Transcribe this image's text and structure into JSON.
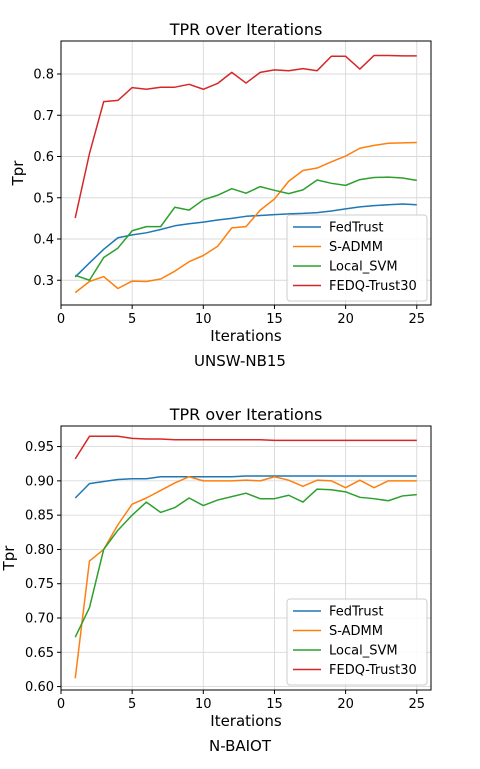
{
  "chart_data": [
    {
      "type": "line",
      "title": "TPR over Iterations",
      "xlabel": "Iterations",
      "ylabel": "Tpr",
      "caption": "UNSW-NB15",
      "xlim": [
        0,
        26
      ],
      "ylim": [
        0.24,
        0.88
      ],
      "xticks": [
        0,
        5,
        10,
        15,
        20,
        25
      ],
      "yticks": [
        0.3,
        0.4,
        0.5,
        0.6,
        0.7,
        0.8
      ],
      "ytick_decimals": 1,
      "grid": true,
      "legend_position": "lower-right",
      "x": [
        1,
        2,
        3,
        4,
        5,
        6,
        7,
        8,
        9,
        10,
        11,
        12,
        13,
        14,
        15,
        16,
        17,
        18,
        19,
        20,
        21,
        22,
        23,
        24,
        25
      ],
      "series": [
        {
          "name": "FedTrust",
          "color": "#1f77b4",
          "values": [
            0.308,
            0.342,
            0.375,
            0.403,
            0.41,
            0.415,
            0.423,
            0.432,
            0.437,
            0.441,
            0.446,
            0.45,
            0.455,
            0.457,
            0.459,
            0.461,
            0.462,
            0.464,
            0.468,
            0.473,
            0.478,
            0.481,
            0.483,
            0.485,
            0.483
          ]
        },
        {
          "name": "S-ADMM",
          "color": "#ff7f0e",
          "values": [
            0.27,
            0.297,
            0.309,
            0.28,
            0.298,
            0.297,
            0.303,
            0.322,
            0.345,
            0.36,
            0.382,
            0.427,
            0.43,
            0.47,
            0.497,
            0.54,
            0.566,
            0.572,
            0.587,
            0.601,
            0.62,
            0.627,
            0.632,
            0.633,
            0.634
          ]
        },
        {
          "name": "Local_SVM",
          "color": "#2ca02c",
          "values": [
            0.312,
            0.3,
            0.355,
            0.378,
            0.42,
            0.43,
            0.43,
            0.477,
            0.47,
            0.495,
            0.506,
            0.522,
            0.511,
            0.527,
            0.518,
            0.51,
            0.519,
            0.543,
            0.535,
            0.53,
            0.544,
            0.549,
            0.55,
            0.548,
            0.542
          ]
        },
        {
          "name": "FEDQ-Trust30",
          "color": "#d62728",
          "values": [
            0.451,
            0.607,
            0.733,
            0.736,
            0.767,
            0.763,
            0.768,
            0.768,
            0.775,
            0.763,
            0.777,
            0.804,
            0.778,
            0.804,
            0.81,
            0.808,
            0.813,
            0.808,
            0.843,
            0.843,
            0.812,
            0.845,
            0.845,
            0.844,
            0.844
          ]
        }
      ]
    },
    {
      "type": "line",
      "title": "TPR over Iterations",
      "xlabel": "Iterations",
      "ylabel": "Tpr",
      "caption": "N-BAIOT",
      "xlim": [
        0,
        26
      ],
      "ylim": [
        0.595,
        0.98
      ],
      "xticks": [
        0,
        5,
        10,
        15,
        20,
        25
      ],
      "yticks": [
        0.6,
        0.65,
        0.7,
        0.75,
        0.8,
        0.85,
        0.9,
        0.95
      ],
      "ytick_decimals": 2,
      "grid": true,
      "legend_position": "lower-right",
      "x": [
        1,
        2,
        3,
        4,
        5,
        6,
        7,
        8,
        9,
        10,
        11,
        12,
        13,
        14,
        15,
        16,
        17,
        18,
        19,
        20,
        21,
        22,
        23,
        24,
        25
      ],
      "series": [
        {
          "name": "FedTrust",
          "color": "#1f77b4",
          "values": [
            0.875,
            0.896,
            0.899,
            0.902,
            0.903,
            0.903,
            0.906,
            0.906,
            0.906,
            0.906,
            0.906,
            0.906,
            0.907,
            0.907,
            0.907,
            0.907,
            0.907,
            0.907,
            0.907,
            0.907,
            0.907,
            0.907,
            0.907,
            0.907,
            0.907
          ]
        },
        {
          "name": "S-ADMM",
          "color": "#ff7f0e",
          "values": [
            0.612,
            0.783,
            0.8,
            0.836,
            0.866,
            0.875,
            0.886,
            0.897,
            0.906,
            0.9,
            0.9,
            0.9,
            0.901,
            0.9,
            0.906,
            0.901,
            0.892,
            0.901,
            0.9,
            0.89,
            0.901,
            0.89,
            0.9,
            0.9,
            0.9
          ]
        },
        {
          "name": "Local_SVM",
          "color": "#2ca02c",
          "values": [
            0.672,
            0.715,
            0.8,
            0.828,
            0.85,
            0.869,
            0.854,
            0.861,
            0.875,
            0.864,
            0.872,
            0.877,
            0.882,
            0.874,
            0.874,
            0.879,
            0.869,
            0.888,
            0.887,
            0.884,
            0.876,
            0.874,
            0.871,
            0.878,
            0.88
          ]
        },
        {
          "name": "FEDQ-Trust30",
          "color": "#d62728",
          "values": [
            0.932,
            0.965,
            0.965,
            0.965,
            0.962,
            0.961,
            0.961,
            0.96,
            0.96,
            0.96,
            0.96,
            0.96,
            0.96,
            0.96,
            0.959,
            0.959,
            0.959,
            0.959,
            0.959,
            0.959,
            0.959,
            0.959,
            0.959,
            0.959,
            0.959
          ]
        }
      ]
    }
  ]
}
